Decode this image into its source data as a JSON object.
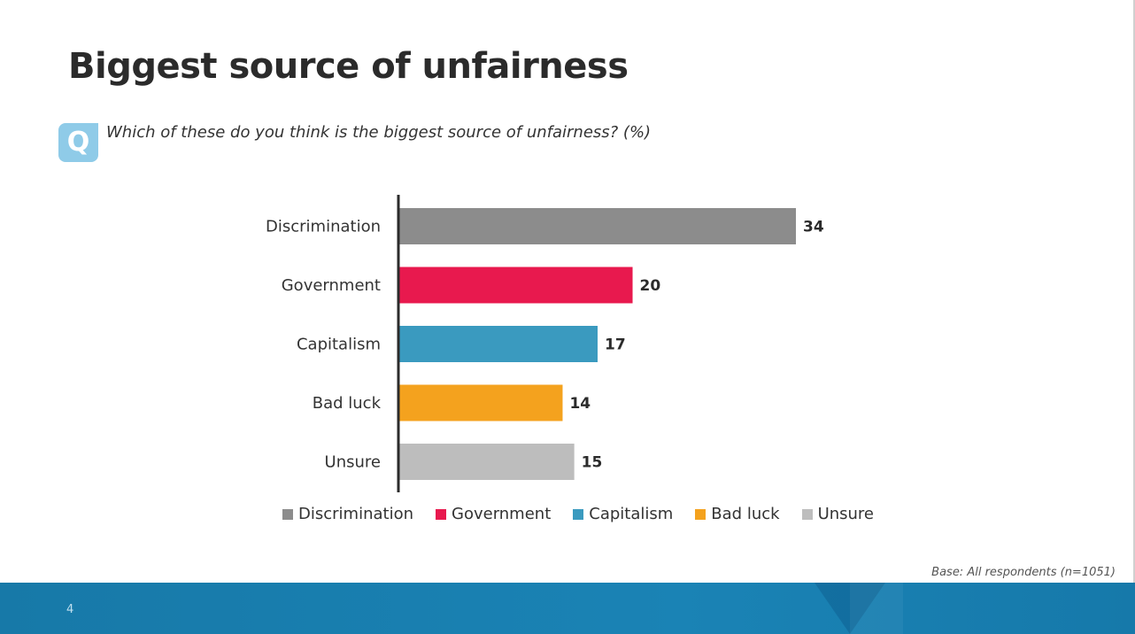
{
  "slide": {
    "title": "Biggest source of unfairness",
    "q_badge": "Q",
    "question": "Which of these do you think is the biggest source of unfairness? (%)",
    "base_note": "Base: All respondents (n=1051)",
    "page_number": "4"
  },
  "chart_data": {
    "type": "bar",
    "orientation": "horizontal",
    "categories": [
      "Discrimination",
      "Government",
      "Capitalism",
      "Bad luck",
      "Unsure"
    ],
    "values": [
      34,
      20,
      17,
      14,
      15
    ],
    "colors": [
      "#8c8c8c",
      "#e8194e",
      "#3a9abf",
      "#f4a21e",
      "#bdbdbd"
    ],
    "xlim": [
      0,
      40
    ],
    "grid": false,
    "legend": {
      "position": "bottom",
      "entries": [
        "Discrimination",
        "Government",
        "Capitalism",
        "Bad luck",
        "Unsure"
      ]
    }
  }
}
